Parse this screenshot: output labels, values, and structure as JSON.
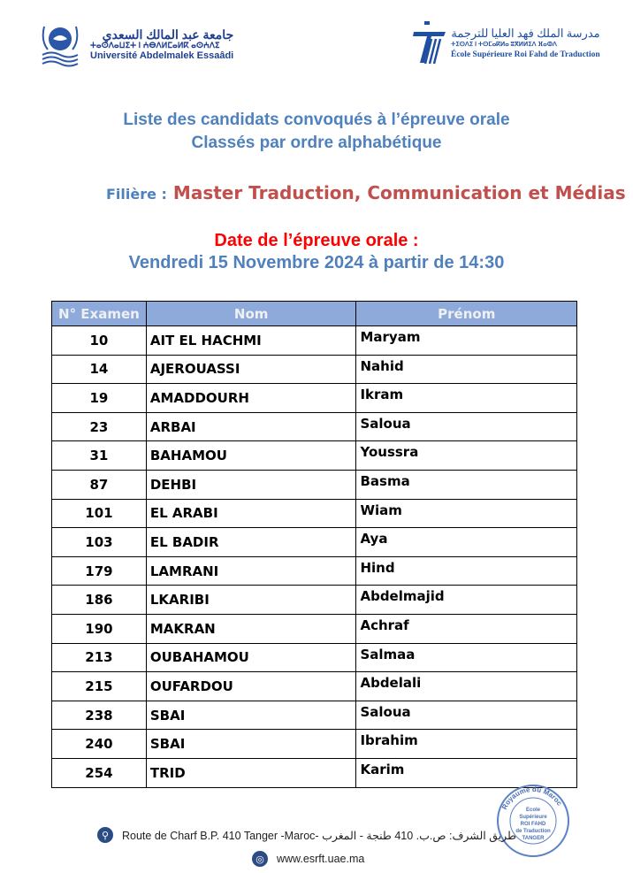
{
  "header": {
    "left_logo": {
      "arabic": "جامعة عبد المالك السعدي",
      "tifinagh": "ⵜⴰⵙⴷⴰⵡⵉⵜ ⵏ ⵄⴱⴷⵍⵎⴰⵍⴽ ⴰⵙⵄⴷⵉ",
      "french": "Université Abdelmalek Essaâdi"
    },
    "right_logo": {
      "arabic": "مدرسة الملك فهد العليا للترجمة",
      "tifinagh": "ⵜⵉⵙⴷⵉ ⵏ ⵜⵙⵎⴰⴽⵍⴰ ⵓⴳⵍⵍⵉⴷ ⴼⴰⵀⴷ",
      "french": "École Supérieure Roi Fahd de Traduction"
    }
  },
  "title": {
    "line1": "Liste des candidats convoqués à l’épreuve orale",
    "line2": "Classés par ordre alphabétique"
  },
  "filiere": {
    "label": "Filière :",
    "value": "Master Traduction, Communication et Médias"
  },
  "date": {
    "label": "Date de l’épreuve orale :",
    "value": "Vendredi 15 Novembre 2024 à partir de 14:30"
  },
  "table": {
    "headers": [
      "N° Examen",
      "Nom",
      "Prénom"
    ],
    "rows": [
      [
        "10",
        "AIT EL HACHMI",
        "Maryam"
      ],
      [
        "14",
        "AJEROUASSI",
        "Nahid"
      ],
      [
        "19",
        "AMADDOURH",
        "Ikram"
      ],
      [
        "23",
        "ARBAI",
        "Saloua"
      ],
      [
        "31",
        "BAHAMOU",
        "Youssra"
      ],
      [
        "87",
        "DEHBI",
        "Basma"
      ],
      [
        "101",
        "EL ARABI",
        "Wiam"
      ],
      [
        "103",
        "EL BADIR",
        "Aya"
      ],
      [
        "179",
        "LAMRANI",
        "Hind"
      ],
      [
        "186",
        "LKARIBI",
        "Abdelmajid"
      ],
      [
        "190",
        "MAKRAN",
        "Achraf"
      ],
      [
        "213",
        "OUBAHAMOU",
        "Salmaa"
      ],
      [
        "215",
        "OUFARDOU",
        "Abdelali"
      ],
      [
        "238",
        "SBAI",
        "Saloua"
      ],
      [
        "240",
        "SBAI",
        "Ibrahim"
      ],
      [
        "254",
        "TRID",
        "Karim"
      ]
    ]
  },
  "stamp": {
    "ring": "Royaume du Maroc · Université Abdelmalek Essaâdi",
    "center": "Ecole Supérieure ROI FAHD de Traduction TANGER"
  },
  "footer": {
    "address": "Route de Charf B.P. 410 Tanger -Maroc- طريق الشرف: ص.ب. 410 طنجة - المغرب",
    "website": "www.esrft.uae.ma",
    "address_icon": "location-pin-icon",
    "web_icon": "globe-icon"
  },
  "colors": {
    "title_blue": "#4f81bd",
    "filiere_red": "#c0504d",
    "date_red": "#ff0000",
    "header_bg": "#8eaadb"
  }
}
